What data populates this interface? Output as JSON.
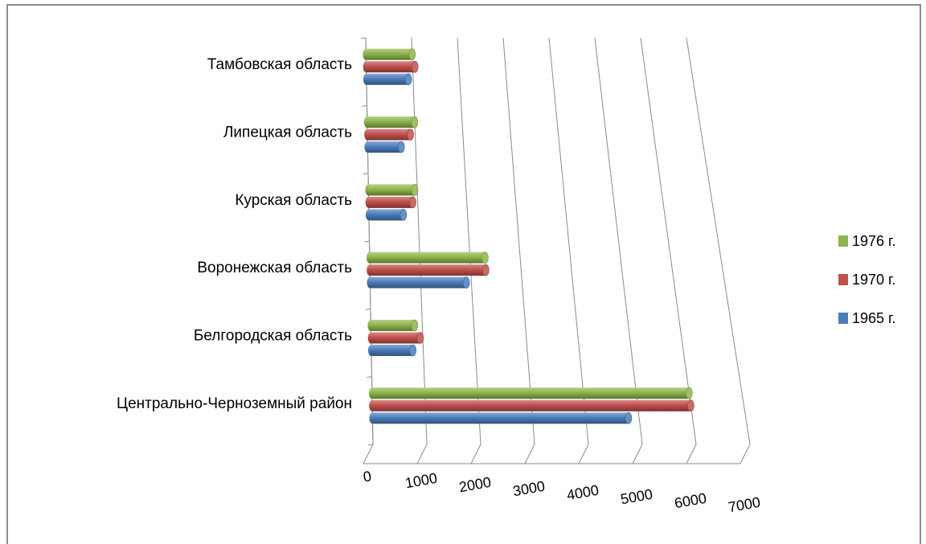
{
  "chart_data": {
    "type": "bar",
    "orientation": "horizontal",
    "style": "3d-cylinder",
    "categories": [
      "Центрально-Черноземный район",
      "Белгородская область",
      "Воронежская область",
      "Курская область",
      "Липецкая область",
      "Тамбовская область"
    ],
    "series": [
      {
        "name": "1965 г.",
        "color": "#4a7ebb",
        "values": [
          4800,
          800,
          1900,
          700,
          700,
          900
        ]
      },
      {
        "name": "1970 г.",
        "color": "#c0504d",
        "values": [
          6000,
          950,
          2300,
          900,
          900,
          1050
        ]
      },
      {
        "name": "1976 г.",
        "color": "#8db54a",
        "values": [
          6000,
          850,
          2300,
          950,
          1000,
          1000
        ]
      }
    ],
    "x_ticks": [
      "0",
      "1000",
      "2000",
      "3000",
      "4000",
      "5000",
      "6000",
      "7000"
    ],
    "xlim": [
      0,
      7000
    ],
    "grid": true,
    "legend_position": "right",
    "legend_order": [
      "1976 г.",
      "1970 г.",
      "1965 г."
    ]
  }
}
